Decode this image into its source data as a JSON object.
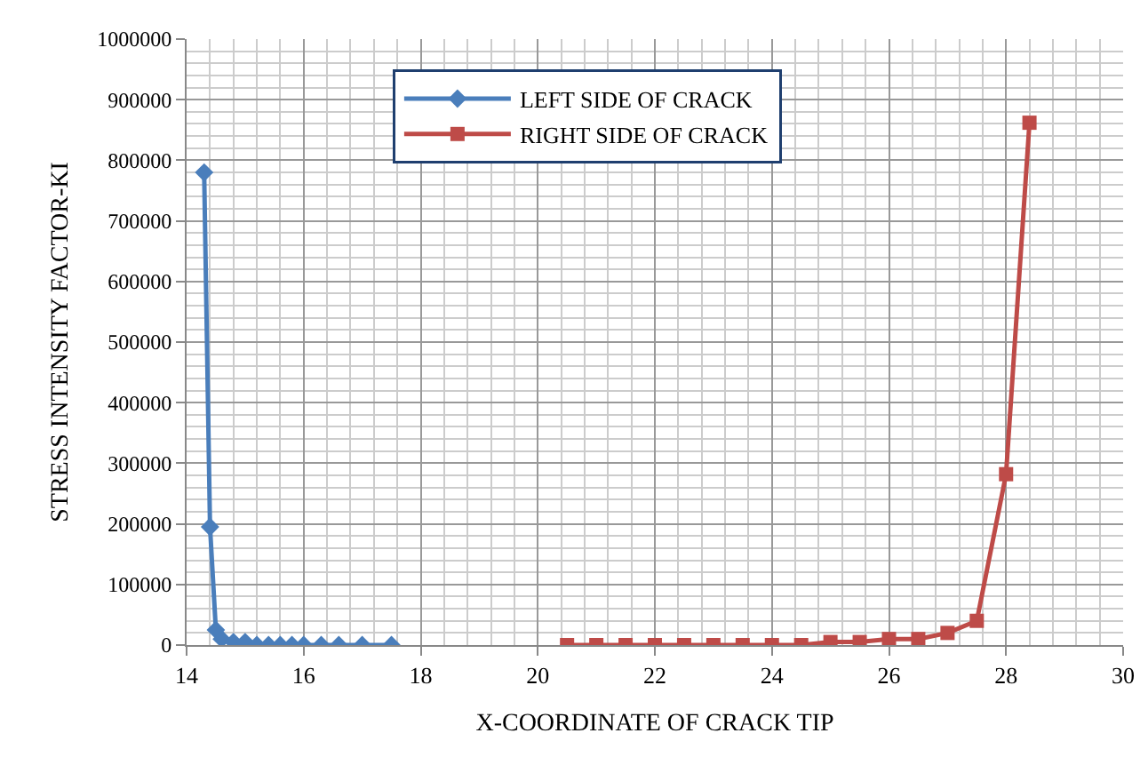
{
  "chart_data": {
    "type": "line",
    "xlabel": "X-COORDINATE OF CRACK TIP",
    "ylabel": "STRESS INTENSITY FACTOR-KI",
    "xlim": [
      14,
      30
    ],
    "xticks": [
      14,
      16,
      18,
      20,
      22,
      24,
      26,
      28,
      30
    ],
    "ylim": [
      0,
      1000000
    ],
    "yticks": [
      0,
      100000,
      200000,
      300000,
      400000,
      500000,
      600000,
      700000,
      800000,
      900000,
      1000000
    ],
    "grid": true,
    "legend": "top",
    "line_style": "solid",
    "series": [
      {
        "name": "LEFT SIDE OF CRACK",
        "color": "#4a7ebb",
        "marker": "diamond",
        "x": [
          14.3,
          14.4,
          14.5,
          14.6,
          14.8,
          15.0,
          15.2,
          15.4,
          15.6,
          15.8,
          16.0,
          16.3,
          16.6,
          17.0,
          17.5
        ],
        "values": [
          780000,
          195000,
          25000,
          10000,
          5000,
          5000,
          0,
          0,
          0,
          0,
          0,
          0,
          0,
          0,
          0
        ]
      },
      {
        "name": "RIGHT SIDE OF CRACK",
        "color": "#be4b48",
        "marker": "square",
        "x": [
          20.5,
          21,
          21.5,
          22,
          22.5,
          23,
          23.5,
          24,
          24.5,
          25,
          25.5,
          26,
          26.5,
          27,
          27.5,
          28,
          28.4
        ],
        "values": [
          0,
          0,
          0,
          0,
          0,
          0,
          0,
          0,
          0,
          5000,
          5000,
          10000,
          10000,
          20000,
          40000,
          282000,
          862000
        ]
      }
    ]
  }
}
